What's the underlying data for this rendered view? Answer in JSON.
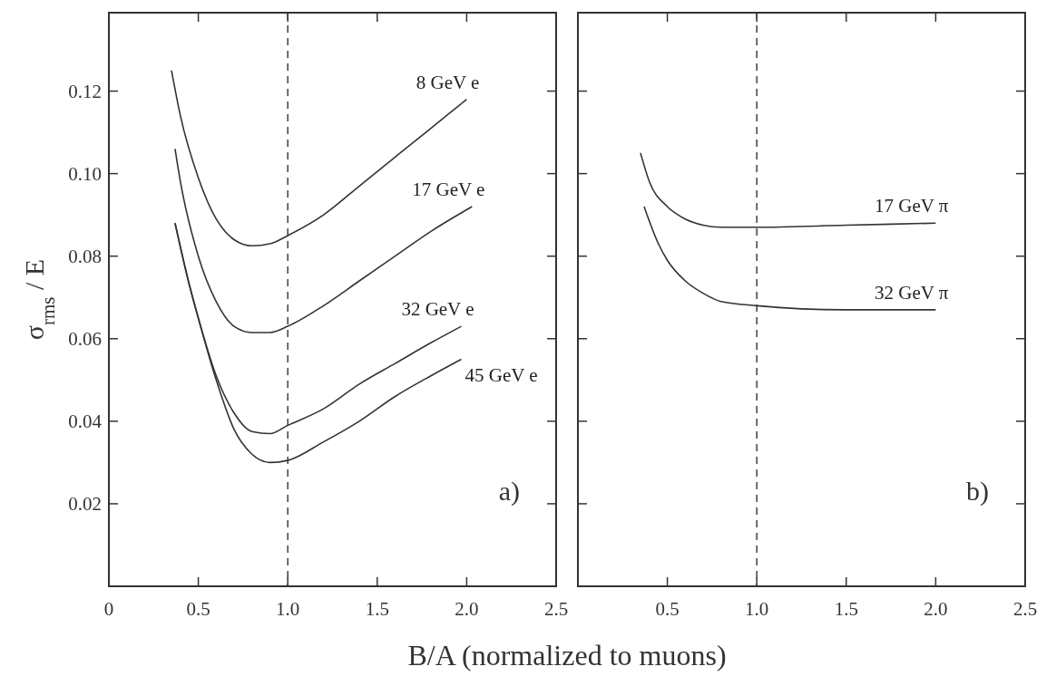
{
  "chart_data": [
    {
      "type": "line",
      "ylabel": "σ$_{rms}$ / E",
      "xlabel": "B/A (normalized to muons)",
      "annotations": [
        "a)"
      ],
      "xlim": [
        0,
        2.5
      ],
      "ylim": [
        0,
        0.139
      ],
      "xticks": [
        0,
        {
          "value": 0.5,
          "label": "0.5"
        },
        {
          "value": 1,
          "label": "1.0"
        },
        {
          "value": 1.5,
          "label": "1.5"
        },
        {
          "value": 2,
          "label": "2.0"
        },
        {
          "value": 2.5,
          "label": "2.5"
        }
      ],
      "yticks": [
        {
          "value": 0.02,
          "label": "0.02"
        },
        {
          "value": 0.04,
          "label": "0.04"
        },
        {
          "value": 0.06,
          "label": "0.06"
        },
        {
          "value": 0.08,
          "label": "0.08"
        },
        {
          "value": 0.1,
          "label": "0.10"
        },
        {
          "value": 0.12,
          "label": "0.12"
        }
      ],
      "ref_lines": [
        {
          "axis": "x",
          "value": 1,
          "line_style": "dashed"
        }
      ],
      "line_style": "solid",
      "marker": "none",
      "grid": false,
      "series": [
        {
          "name": "8 GeV e",
          "color": "#333333",
          "x": [
            0.35,
            0.4,
            0.5,
            0.6,
            0.7,
            0.8,
            0.9,
            1.0,
            1.2,
            1.4,
            1.6,
            1.8,
            2.0
          ],
          "values": [
            0.125,
            0.114,
            0.099,
            0.089,
            0.084,
            0.0825,
            0.083,
            0.085,
            0.09,
            0.097,
            0.104,
            0.111,
            0.118
          ]
        },
        {
          "name": "17 GeV e",
          "color": "#333333",
          "x": [
            0.37,
            0.4,
            0.5,
            0.6,
            0.7,
            0.8,
            0.9,
            1.0,
            1.2,
            1.4,
            1.6,
            1.8,
            2.03
          ],
          "values": [
            0.106,
            0.098,
            0.08,
            0.069,
            0.063,
            0.0615,
            0.0615,
            0.063,
            0.068,
            0.074,
            0.08,
            0.086,
            0.092
          ]
        },
        {
          "name": "32 GeV e",
          "color": "#333333",
          "x": [
            0.37,
            0.45,
            0.5,
            0.6,
            0.7,
            0.8,
            0.9,
            1.0,
            1.2,
            1.4,
            1.6,
            1.8,
            1.97
          ],
          "values": [
            0.088,
            0.073,
            0.065,
            0.051,
            0.042,
            0.0375,
            0.037,
            0.039,
            0.043,
            0.049,
            0.054,
            0.059,
            0.063
          ]
        },
        {
          "name": "45 GeV e",
          "color": "#333333",
          "x": [
            0.37,
            0.45,
            0.5,
            0.6,
            0.7,
            0.8,
            0.9,
            1.0,
            1.2,
            1.4,
            1.6,
            1.8,
            1.97
          ],
          "values": [
            0.088,
            0.073,
            0.065,
            0.05,
            0.038,
            0.032,
            0.03,
            0.0305,
            0.035,
            0.04,
            0.046,
            0.051,
            0.055
          ]
        }
      ]
    },
    {
      "type": "line",
      "annotations": [
        "b)"
      ],
      "tick_labels": "x",
      "xlim": [
        0,
        2.5
      ],
      "ylim": [
        0,
        0.139
      ],
      "xticks": [
        {
          "value": 0.5,
          "label": "0.5"
        },
        {
          "value": 1,
          "label": "1.0"
        },
        {
          "value": 1.5,
          "label": "1.5"
        },
        {
          "value": 2,
          "label": "2.0"
        },
        {
          "value": 2.5,
          "label": "2.5"
        }
      ],
      "yticks": [
        {
          "value": 0.02,
          "label": null
        },
        {
          "value": 0.04,
          "label": null
        },
        {
          "value": 0.06,
          "label": null
        },
        {
          "value": 0.08,
          "label": null
        },
        {
          "value": 0.1,
          "label": null
        },
        {
          "value": 0.12,
          "label": null
        }
      ],
      "ref_lines": [
        {
          "axis": "x",
          "value": 1,
          "line_style": "dashed"
        }
      ],
      "line_style": "solid",
      "marker": "none",
      "grid": false,
      "series": [
        {
          "name": "17 GeV π",
          "color": "#333333",
          "x": [
            0.35,
            0.4,
            0.5,
            0.6,
            0.7,
            0.8,
            1.0,
            1.5,
            2.0
          ],
          "values": [
            0.105,
            0.098,
            0.092,
            0.089,
            0.0875,
            0.087,
            0.087,
            0.0875,
            0.088
          ]
        },
        {
          "name": "32 GeV π",
          "color": "#333333",
          "x": [
            0.37,
            0.45,
            0.5,
            0.6,
            0.7,
            0.8,
            1.0,
            1.5,
            2.0
          ],
          "values": [
            0.092,
            0.083,
            0.079,
            0.074,
            0.071,
            0.069,
            0.068,
            0.067,
            0.067
          ]
        }
      ]
    }
  ]
}
